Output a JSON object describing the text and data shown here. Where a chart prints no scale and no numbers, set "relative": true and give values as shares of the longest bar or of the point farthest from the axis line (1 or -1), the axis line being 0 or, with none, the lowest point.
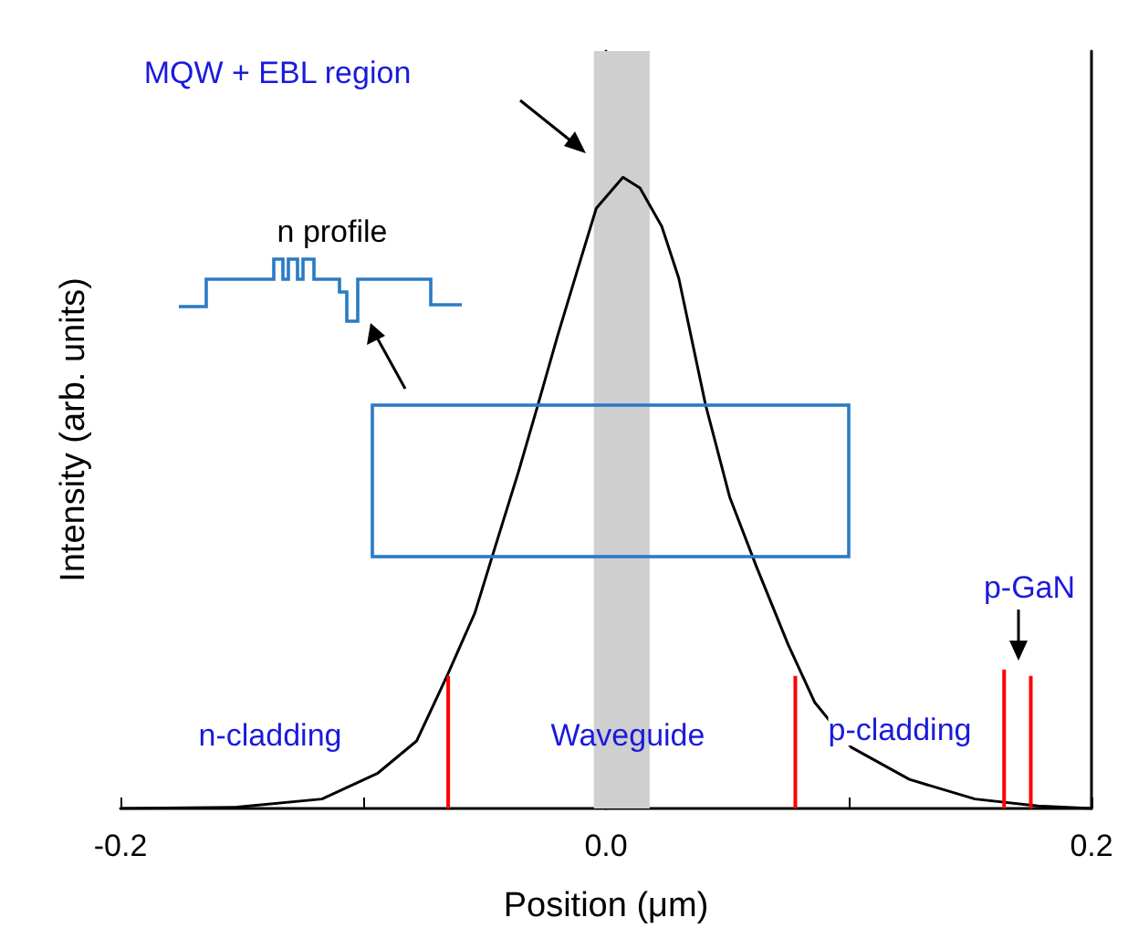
{
  "chart_data": {
    "type": "line",
    "xlabel": "Position (μm)",
    "ylabel": "Intensity (arb. units)",
    "relative": true,
    "xlim": [
      -0.2,
      0.2
    ],
    "xticks": [
      {
        "value": -0.2,
        "label": "-0.2"
      },
      {
        "value": -0.1,
        "label": null
      },
      {
        "value": 0,
        "label": "0.0"
      },
      {
        "value": 0.1,
        "label": null
      },
      {
        "value": 0.2,
        "label": "0.2"
      }
    ],
    "series": [
      {
        "color": "#000000",
        "x": [
          -0.2,
          -0.152,
          -0.117,
          -0.094,
          -0.078,
          -0.065,
          -0.054,
          -0.046,
          -0.036,
          -0.028,
          -0.02,
          -0.012,
          -0.004,
          0.007,
          0.014,
          0.023,
          0.03,
          0.041,
          0.051,
          0.062,
          0.075,
          0.086,
          0.101,
          0.125,
          0.152,
          0.178,
          0.2
        ],
        "values": [
          0,
          0.002,
          0.015,
          0.056,
          0.107,
          0.214,
          0.31,
          0.41,
          0.534,
          0.64,
          0.748,
          0.85,
          0.951,
          1,
          0.983,
          0.922,
          0.84,
          0.64,
          0.493,
          0.383,
          0.26,
          0.168,
          0.097,
          0.046,
          0.015,
          0.004,
          0
        ]
      },
      {
        "color": "#ff0000",
        "x": [
          -0.065,
          -0.065
        ],
        "values": [
          0,
          0.21
        ]
      },
      {
        "color": "#ff0000",
        "x": [
          0.078,
          0.078
        ],
        "values": [
          0,
          0.21
        ]
      },
      {
        "color": "#ff0000",
        "x": [
          0.164,
          0.164
        ],
        "values": [
          0,
          0.22
        ]
      },
      {
        "color": "#ff0000",
        "x": [
          0.175,
          0.175
        ],
        "values": [
          0,
          0.21
        ]
      }
    ],
    "bands": [
      {
        "axis": "x",
        "from": -0.005,
        "to": 0.018,
        "color": "#cfcfcf"
      }
    ],
    "annotations": [
      "MQW + EBL region",
      "n profile",
      "n-cladding",
      "Waveguide",
      "p-cladding",
      "p-GaN"
    ],
    "marker": "none",
    "line_style": "solid"
  }
}
